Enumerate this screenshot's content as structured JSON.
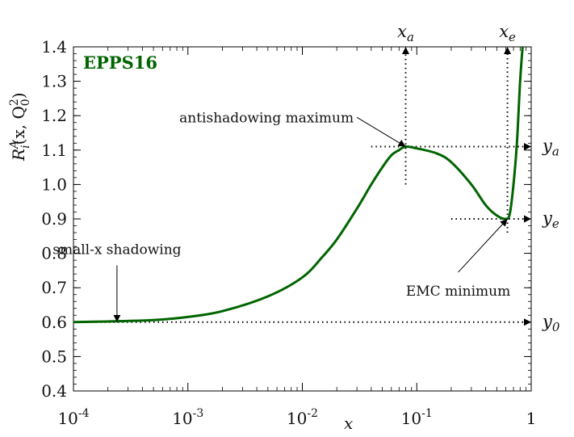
{
  "chart_data": {
    "type": "line",
    "title": "",
    "xlabel": "x",
    "ylabel": "R_i^A(x, Q_0^2)",
    "ylabel_parts": {
      "base": "R",
      "sup": "A",
      "sub": "i",
      "args": "(x, Q",
      "arg_sup": "2",
      "arg_sub": "0",
      "close": ")"
    },
    "x_scale": "log",
    "xlim": [
      0.0001,
      1
    ],
    "ylim": [
      0.4,
      1.4
    ],
    "x_ticks": [
      {
        "value": 0.0001,
        "base": "10",
        "exp": "-4"
      },
      {
        "value": 0.001,
        "base": "10",
        "exp": "-3"
      },
      {
        "value": 0.01,
        "base": "10",
        "exp": "-2"
      },
      {
        "value": 0.1,
        "base": "10",
        "exp": "-1"
      },
      {
        "value": 1,
        "base": "1",
        "exp": ""
      }
    ],
    "y_ticks": [
      "0.4",
      "0.5",
      "0.6",
      "0.7",
      "0.8",
      "0.9",
      "1.0",
      "1.1",
      "1.2",
      "1.3",
      "1.4"
    ],
    "brand_label": "EPPS16",
    "series": [
      {
        "color": "#006400",
        "x": [
          0.0001,
          0.0002,
          0.0005,
          0.001,
          0.002,
          0.005,
          0.01,
          0.015,
          0.02,
          0.03,
          0.04,
          0.05,
          0.06,
          0.07,
          0.08,
          0.1,
          0.15,
          0.2,
          0.3,
          0.4,
          0.5,
          0.6,
          0.65,
          0.7,
          0.75,
          0.8,
          0.85
        ],
        "y": [
          0.6,
          0.602,
          0.606,
          0.615,
          0.632,
          0.675,
          0.73,
          0.79,
          0.84,
          0.93,
          1.0,
          1.05,
          1.085,
          1.1,
          1.11,
          1.105,
          1.09,
          1.065,
          1.0,
          0.94,
          0.91,
          0.9,
          0.915,
          1.0,
          1.12,
          1.3,
          1.42
        ]
      }
    ],
    "annotations": [
      {
        "text": "small-x shadowing",
        "arrow_from": [
          0.00024,
          0.765
        ],
        "arrow_to": [
          0.00024,
          0.6
        ]
      },
      {
        "text": "antishadowing maximum",
        "arrow_from": [
          0.03,
          1.195
        ],
        "arrow_to": [
          0.08,
          1.11
        ]
      },
      {
        "text": "EMC minimum",
        "arrow_from": [
          0.23,
          0.745
        ],
        "arrow_to": [
          0.62,
          0.9
        ]
      }
    ],
    "markers": {
      "x_a": {
        "name": "x",
        "sub": "a",
        "value": 0.08
      },
      "x_e": {
        "name": "x",
        "sub": "e",
        "value": 0.62
      },
      "y_a": {
        "name": "y",
        "sub": "a",
        "value": 1.11
      },
      "y_e": {
        "name": "y",
        "sub": "e",
        "value": 0.9
      },
      "y_0": {
        "name": "y",
        "sub": "0",
        "value": 0.6
      }
    },
    "grid": false,
    "legend": "none"
  }
}
